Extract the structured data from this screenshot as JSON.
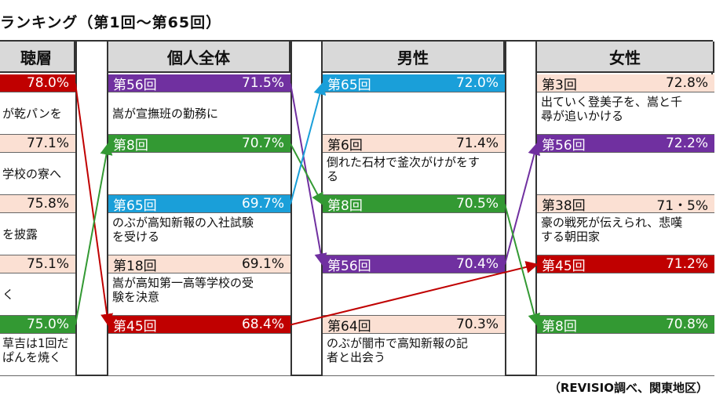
{
  "title": "ランキング（第1回～第65回）",
  "footnote": "（REVISIO調べ、関東地区）",
  "colors": {
    "red": "#c00000",
    "purple": "#7030a0",
    "green": "#339933",
    "blue": "#1a9fd9",
    "salmon": "#fbe0d3"
  },
  "chart_data": {
    "type": "table",
    "columns": [
      {
        "key": "c0",
        "header": "聴層",
        "rows": [
          {
            "ep": "",
            "val": "78.0%",
            "color": "red",
            "desc": "が乾パンを"
          },
          {
            "ep": "",
            "val": "77.1%",
            "color": "salmon",
            "desc": "学校の寮へ"
          },
          {
            "ep": "",
            "val": "75.8%",
            "color": "salmon",
            "desc": "を披露"
          },
          {
            "ep": "",
            "val": "75.1%",
            "color": "salmon",
            "desc": "く"
          },
          {
            "ep": "",
            "val": "75.0%",
            "color": "green",
            "desc": "草吉は1回だ\nぱんを焼く"
          }
        ]
      },
      {
        "key": "c1",
        "header": "個人全体",
        "rows": [
          {
            "ep": "第56回",
            "val": "71.5%",
            "color": "purple",
            "desc": "嵩が宣撫班の勤務に"
          },
          {
            "ep": "第8回",
            "val": "70.7%",
            "color": "green",
            "desc": ""
          },
          {
            "ep": "第65回",
            "val": "69.7%",
            "color": "blue",
            "desc": "のぶが高知新報の入社試験\nを受ける"
          },
          {
            "ep": "第18回",
            "val": "69.1%",
            "color": "salmon",
            "desc": "嵩が高知第一高等学校の受\n験を決意"
          },
          {
            "ep": "第45回",
            "val": "68.4%",
            "color": "red",
            "desc": ""
          }
        ]
      },
      {
        "key": "c2",
        "header": "男性",
        "rows": [
          {
            "ep": "第65回",
            "val": "72.0%",
            "color": "blue",
            "desc": ""
          },
          {
            "ep": "第6回",
            "val": "71.4%",
            "color": "salmon",
            "desc": "倒れた石材で釜次がけがをす\nる"
          },
          {
            "ep": "第8回",
            "val": "70.5%",
            "color": "green",
            "desc": ""
          },
          {
            "ep": "第56回",
            "val": "70.4%",
            "color": "purple",
            "desc": ""
          },
          {
            "ep": "第64回",
            "val": "70.3%",
            "color": "salmon",
            "desc": "のぶが闇市で高知新報の記\n者と出会う"
          }
        ]
      },
      {
        "key": "c3",
        "header": "女性",
        "rows": [
          {
            "ep": "第3回",
            "val": "72.8%",
            "color": "salmon",
            "desc": "出ていく登美子を、嵩と千\n尋が追いかける"
          },
          {
            "ep": "第56回",
            "val": "72.2%",
            "color": "purple",
            "desc": ""
          },
          {
            "ep": "第38回",
            "val": "71・5%",
            "color": "salmon",
            "desc": "豪の戦死が伝えられ、悲嘆\nする朝田家"
          },
          {
            "ep": "第45回",
            "val": "71.2%",
            "color": "red",
            "desc": ""
          },
          {
            "ep": "第8回",
            "val": "70.8%",
            "color": "green",
            "desc": ""
          }
        ]
      }
    ],
    "links": [
      {
        "color": "red",
        "from": [
          0,
          0
        ],
        "to": [
          1,
          4
        ]
      },
      {
        "color": "green",
        "from": [
          0,
          4
        ],
        "to": [
          1,
          1
        ]
      },
      {
        "color": "purple",
        "from": [
          1,
          0
        ],
        "to": [
          2,
          3
        ]
      },
      {
        "color": "green",
        "from": [
          1,
          1
        ],
        "to": [
          2,
          2
        ]
      },
      {
        "color": "blue",
        "from": [
          1,
          2
        ],
        "to": [
          2,
          0
        ]
      },
      {
        "color": "red",
        "from": [
          1,
          4
        ],
        "to": [
          3,
          3
        ]
      },
      {
        "color": "purple",
        "from": [
          2,
          3
        ],
        "to": [
          3,
          1
        ]
      },
      {
        "color": "green",
        "from": [
          2,
          2
        ],
        "to": [
          3,
          4
        ]
      }
    ]
  }
}
